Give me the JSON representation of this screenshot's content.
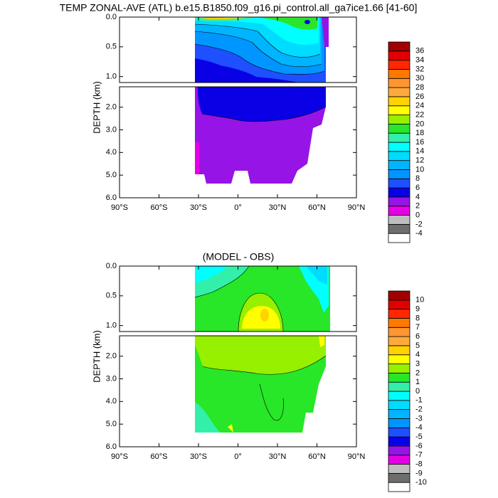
{
  "chart_data": [
    {
      "type": "contour",
      "title": "TEMP ZONAL-AVE (ATL) b.e15.B1850.f09_g16.pi_control.all_ga7ice1.66 [41-60]",
      "y_label": "DEPTH (km)",
      "xlim": [
        -90,
        90
      ],
      "xticks": [
        {
          "value": -90,
          "label": "90°S"
        },
        {
          "value": -60,
          "label": "60°S"
        },
        {
          "value": -30,
          "label": "30°S"
        },
        {
          "value": 0,
          "label": "0°"
        },
        {
          "value": 30,
          "label": "30°N"
        },
        {
          "value": 60,
          "label": "60°N"
        },
        {
          "value": 90,
          "label": "90°N"
        }
      ],
      "panels": [
        {
          "ylim": [
            0,
            1.1
          ],
          "yticks": [
            {
              "value": 0,
              "label": "0.0"
            },
            {
              "value": 0.5,
              "label": "0.5"
            },
            {
              "value": 1,
              "label": "1.0"
            }
          ]
        },
        {
          "ylim": [
            1.1,
            6
          ],
          "yticks": [
            {
              "value": 2,
              "label": "2.0"
            },
            {
              "value": 3,
              "label": "3.0"
            },
            {
              "value": 4,
              "label": "4.0"
            },
            {
              "value": 5,
              "label": "5.0"
            },
            {
              "value": 6,
              "label": "6.0"
            }
          ]
        }
      ],
      "colorbar": {
        "levels": [
          -4,
          -2,
          0,
          2,
          4,
          6,
          8,
          10,
          12,
          14,
          16,
          18,
          20,
          22,
          24,
          26,
          28,
          30,
          32,
          34,
          36
        ],
        "colors": [
          "#ffffff",
          "#6e6e6e",
          "#bebebe",
          "#e600e6",
          "#9614e6",
          "#0a00e6",
          "#1e50ff",
          "#0096ff",
          "#00b4ff",
          "#00dcff",
          "#00ffff",
          "#32f0aa",
          "#28e628",
          "#96f000",
          "#ffff00",
          "#ffd200",
          "#ffaa3c",
          "#ff9632",
          "#ff7800",
          "#ff2800",
          "#e10000",
          "#a00000"
        ]
      }
    },
    {
      "type": "contour",
      "title": "(MODEL - OBS)",
      "y_label": "DEPTH (km)",
      "xlim": [
        -90,
        90
      ],
      "xticks": [
        {
          "value": -90,
          "label": "90°S"
        },
        {
          "value": -60,
          "label": "60°S"
        },
        {
          "value": -30,
          "label": "30°S"
        },
        {
          "value": 0,
          "label": "0°"
        },
        {
          "value": 30,
          "label": "30°N"
        },
        {
          "value": 60,
          "label": "60°N"
        },
        {
          "value": 90,
          "label": "90°N"
        }
      ],
      "panels": [
        {
          "ylim": [
            0,
            1.1
          ],
          "yticks": [
            {
              "value": 0,
              "label": "0.0"
            },
            {
              "value": 0.5,
              "label": "0.5"
            },
            {
              "value": 1,
              "label": "1.0"
            }
          ]
        },
        {
          "ylim": [
            1.1,
            6
          ],
          "yticks": [
            {
              "value": 2,
              "label": "2.0"
            },
            {
              "value": 3,
              "label": "3.0"
            },
            {
              "value": 4,
              "label": "4.0"
            },
            {
              "value": 5,
              "label": "5.0"
            },
            {
              "value": 6,
              "label": "6.0"
            }
          ]
        }
      ],
      "colorbar": {
        "levels": [
          -10,
          -9,
          -8,
          -7,
          -6,
          -5,
          -4,
          -3,
          -2,
          -1,
          0,
          1,
          2,
          3,
          4,
          5,
          6,
          7,
          8,
          9,
          10
        ],
        "colors": [
          "#ffffff",
          "#6e6e6e",
          "#bebebe",
          "#e600e6",
          "#9614e6",
          "#0a00e6",
          "#1e50ff",
          "#0096ff",
          "#00b4ff",
          "#00dcff",
          "#00ffff",
          "#32f0aa",
          "#28e628",
          "#96f000",
          "#ffff00",
          "#ffd200",
          "#ffaa3c",
          "#ff9632",
          "#ff7800",
          "#ff2800",
          "#e10000",
          "#a00000"
        ]
      }
    }
  ]
}
